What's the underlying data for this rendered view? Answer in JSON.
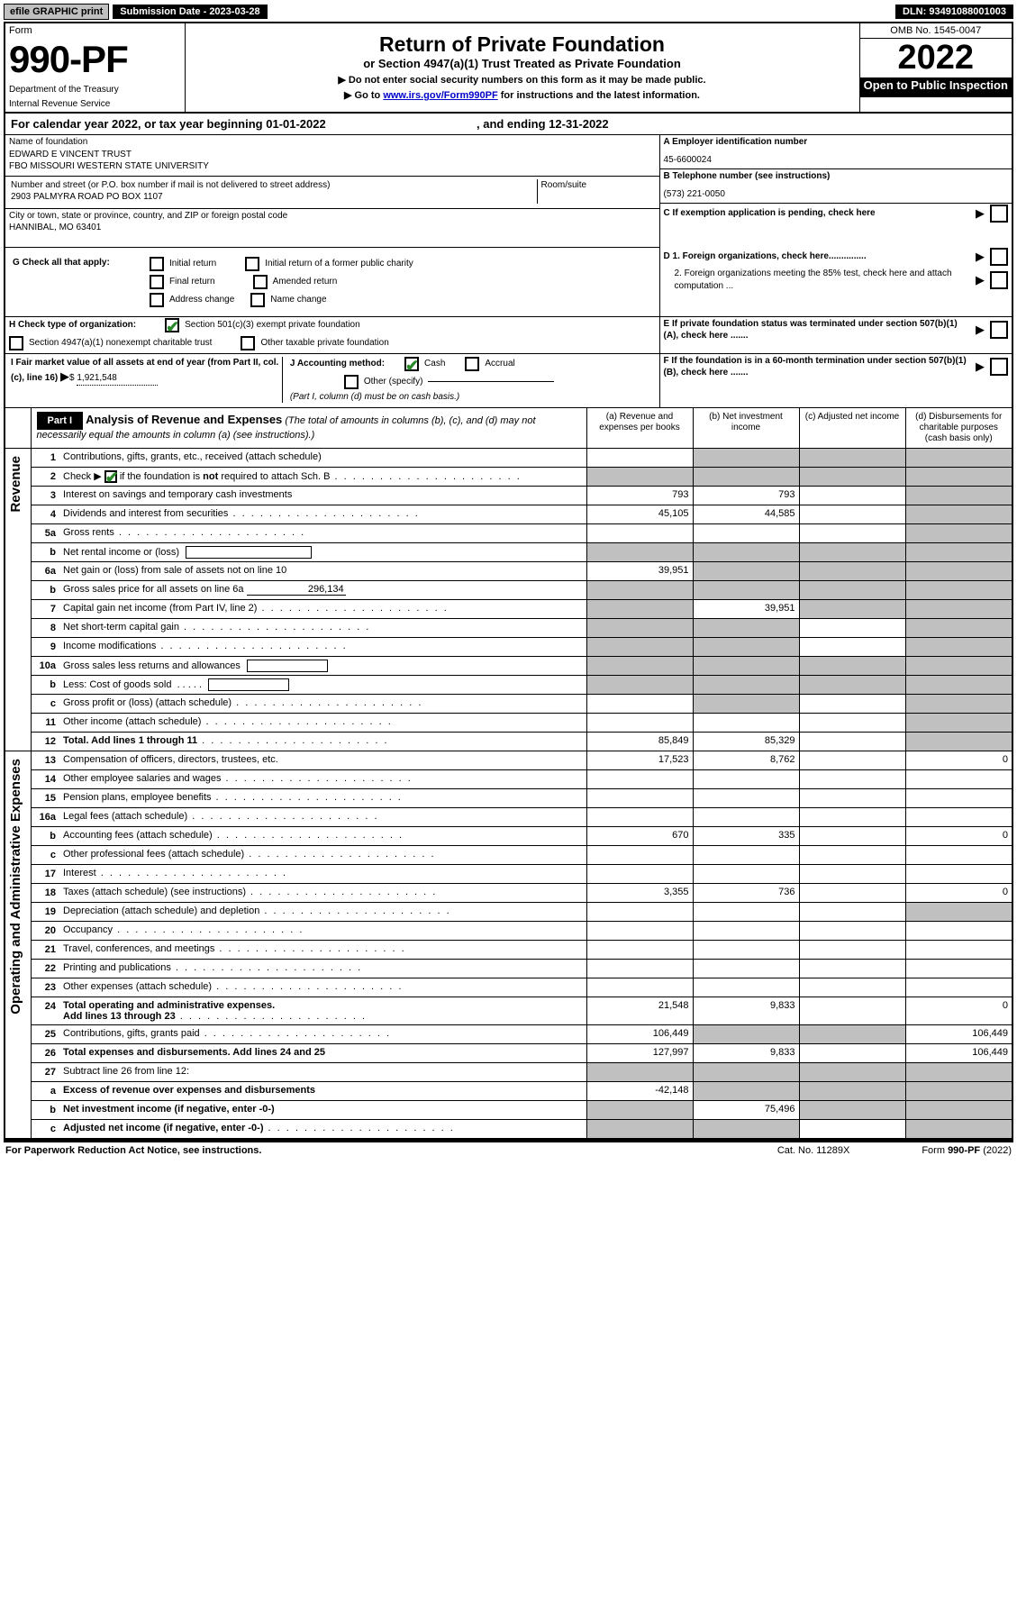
{
  "top": {
    "efile": "efile GRAPHIC print",
    "sub_label": "Submission Date - 2023-03-28",
    "dln_label": "DLN: 93491088001003"
  },
  "hdr": {
    "form": "Form",
    "num": "990-PF",
    "dept": "Department of the Treasury",
    "irs": "Internal Revenue Service",
    "title": "Return of Private Foundation",
    "sub": "or Section 4947(a)(1) Trust Treated as Private Foundation",
    "inst1": "▶ Do not enter social security numbers on this form as it may be made public.",
    "inst2": "▶ Go to ",
    "inst2_link": "www.irs.gov/Form990PF",
    "inst2_end": " for instructions and the latest information.",
    "omb": "OMB No. 1545-0047",
    "year": "2022",
    "open": "Open to Public Inspection",
    "cy": "For calendar year 2022, or tax year beginning 01-01-2022",
    "cy_end": ", and ending 12-31-2022"
  },
  "id": {
    "name_label": "Name of foundation",
    "name1": "EDWARD E VINCENT TRUST",
    "name2": "FBO MISSOURI WESTERN STATE UNIVERSITY",
    "addr_label": "Number and street (or P.O. box number if mail is not delivered to street address)",
    "addr": "2903 PALMYRA ROAD PO BOX 1107",
    "room_label": "Room/suite",
    "city_label": "City or town, state or province, country, and ZIP or foreign postal code",
    "city": "HANNIBAL, MO  63401",
    "a_label": "A Employer identification number",
    "a_val": "45-6600024",
    "b_label": "B Telephone number (see instructions)",
    "b_val": "(573) 221-0050",
    "c_label": "C If exemption application is pending, check here",
    "d1_label": "D 1. Foreign organizations, check here...............",
    "d2_label": "2. Foreign organizations meeting the 85% test, check here and attach computation ...",
    "e_label": "E  If private foundation status was terminated under section 507(b)(1)(A), check here .......",
    "f_label": "F  If the foundation is in a 60-month termination under section 507(b)(1)(B), check here .......",
    "g_label": "G Check all that apply:",
    "g_initial": "Initial return",
    "g_initial_charity": "Initial return of a former public charity",
    "g_final": "Final return",
    "g_amended": "Amended return",
    "g_addr": "Address change",
    "g_name": "Name change",
    "h_label": "H Check type of organization:",
    "h_501c3": "Section 501(c)(3) exempt private foundation",
    "h_4947": "Section 4947(a)(1) nonexempt charitable trust",
    "h_other": "Other taxable private foundation",
    "i_label": "I Fair market value of all assets at end of year (from Part II, col. (c), line 16)",
    "i_val": "1,921,548",
    "j_label": "J Accounting method:",
    "j_cash": "Cash",
    "j_accrual": "Accrual",
    "j_other": "Other (specify)",
    "j_note": "(Part I, column (d) must be on cash basis.)"
  },
  "p1": {
    "part": "Part I",
    "title": "Analysis of Revenue and Expenses",
    "title_note": " (The total of amounts in columns (b), (c), and (d) may not necessarily equal the amounts in column (a) (see instructions).)",
    "col_a": "(a)  Revenue and expenses per books",
    "col_b": "(b)  Net investment income",
    "col_c": "(c)  Adjusted net income",
    "col_d": "(d)  Disbursements for charitable purposes (cash basis only)",
    "rev_label": "Revenue",
    "exp_label": "Operating and Administrative Expenses"
  },
  "rows": [
    {
      "n": "1",
      "d": "Contributions, gifts, grants, etc., received (attach schedule)",
      "a": "",
      "b": "",
      "grey_b": true,
      "grey_c": true,
      "grey_d": true
    },
    {
      "n": "2",
      "d": "Check ▶ [cb-checked] if the foundation is not required to attach Sch. B",
      "dots_after": true,
      "a": "",
      "grey_a": true,
      "grey_b": true,
      "grey_c": true,
      "grey_d": true
    },
    {
      "n": "3",
      "d": "Interest on savings and temporary cash investments",
      "a": "793",
      "b": "793",
      "grey_d": true
    },
    {
      "n": "4",
      "d": "Dividends and interest from securities",
      "dots": true,
      "a": "45,105",
      "b": "44,585",
      "grey_d": true
    },
    {
      "n": "5a",
      "d": "Gross rents",
      "dots": true,
      "grey_d": true
    },
    {
      "n": "b",
      "d": "Net rental income or (loss)",
      "box": true,
      "grey_a": true,
      "grey_b": true,
      "grey_c": true,
      "grey_d": true
    },
    {
      "n": "6a",
      "d": "Net gain or (loss) from sale of assets not on line 10",
      "a": "39,951",
      "grey_b": true,
      "grey_c": true,
      "grey_d": true
    },
    {
      "n": "b",
      "d": "Gross sales price for all assets on line 6a",
      "inline_val": "296,134",
      "grey_a": true,
      "grey_b": true,
      "grey_c": true,
      "grey_d": true
    },
    {
      "n": "7",
      "d": "Capital gain net income (from Part IV, line 2)",
      "dots": true,
      "b": "39,951",
      "grey_a": true,
      "grey_c": true,
      "grey_d": true
    },
    {
      "n": "8",
      "d": "Net short-term capital gain",
      "dots": true,
      "grey_a": true,
      "grey_b": true,
      "grey_d": true
    },
    {
      "n": "9",
      "d": "Income modifications",
      "dots": true,
      "grey_a": true,
      "grey_b": true,
      "grey_d": true
    },
    {
      "n": "10a",
      "d": "Gross sales less returns and allowances",
      "box": true,
      "grey_a": true,
      "grey_b": true,
      "grey_c": true,
      "grey_d": true
    },
    {
      "n": "b",
      "d": "Less: Cost of goods sold",
      "dots": true,
      "box": true,
      "grey_a": true,
      "grey_b": true,
      "grey_c": true,
      "grey_d": true
    },
    {
      "n": "c",
      "d": "Gross profit or (loss) (attach schedule)",
      "dots": true,
      "grey_b": true,
      "grey_d": true
    },
    {
      "n": "11",
      "d": "Other income (attach schedule)",
      "dots": true,
      "grey_d": true
    },
    {
      "n": "12",
      "d": "Total. Add lines 1 through 11",
      "dots": true,
      "bold": true,
      "a": "85,849",
      "b": "85,329",
      "grey_d": true
    }
  ],
  "exp_rows": [
    {
      "n": "13",
      "d": "0",
      "a": "17,523",
      "b": "8,762"
    },
    {
      "n": "14",
      "d": "Other employee salaries and wages",
      "dots": true
    },
    {
      "n": "15",
      "d": "Pension plans, employee benefits",
      "dots": true
    },
    {
      "n": "16a",
      "d": "Legal fees (attach schedule)",
      "dots": true
    },
    {
      "n": "b",
      "d": "0",
      "dots": true,
      "a": "670",
      "b": "335"
    },
    {
      "n": "c",
      "d": "Other professional fees (attach schedule)",
      "dots": true
    },
    {
      "n": "17",
      "d": "Interest",
      "dots": true
    },
    {
      "n": "18",
      "d": "0",
      "dots": true,
      "a": "3,355",
      "b": "736"
    },
    {
      "n": "19",
      "d": "Depreciation (attach schedule) and depletion",
      "dots": true,
      "grey_d": true
    },
    {
      "n": "20",
      "d": "Occupancy",
      "dots": true
    },
    {
      "n": "21",
      "d": "Travel, conferences, and meetings",
      "dots": true
    },
    {
      "n": "22",
      "d": "Printing and publications",
      "dots": true
    },
    {
      "n": "23",
      "d": "Other expenses (attach schedule)",
      "dots": true
    },
    {
      "n": "24",
      "d": "0",
      "dots": true,
      "bold": true,
      "a": "21,548",
      "b": "9,833"
    },
    {
      "n": "25",
      "d": "106,449",
      "dots": true,
      "a": "106,449",
      "grey_b": true,
      "grey_c": true
    },
    {
      "n": "26",
      "d": "106,449",
      "bold": true,
      "a": "127,997",
      "b": "9,833"
    },
    {
      "n": "27",
      "d": "Subtract line 26 from line 12:",
      "grey_a": true,
      "grey_b": true,
      "grey_c": true,
      "grey_d": true
    },
    {
      "n": "a",
      "d": "Excess of revenue over expenses and disbursements",
      "bold": true,
      "a": "-42,148",
      "grey_b": true,
      "grey_c": true,
      "grey_d": true
    },
    {
      "n": "b",
      "d": "Net investment income (if negative, enter -0-)",
      "bold": true,
      "grey_a": true,
      "b": "75,496",
      "grey_c": true,
      "grey_d": true
    },
    {
      "n": "c",
      "d": "Adjusted net income (if negative, enter -0-)",
      "dots": true,
      "bold": true,
      "grey_a": true,
      "grey_b": true,
      "grey_d": true
    }
  ],
  "footer": {
    "pra": "For Paperwork Reduction Act Notice, see instructions.",
    "cat": "Cat. No. 11289X",
    "form": "Form 990-PF (2022)"
  }
}
